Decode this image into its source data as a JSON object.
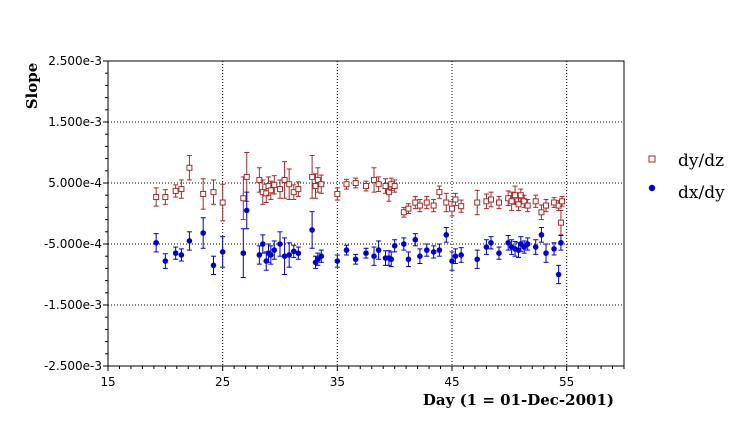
{
  "chart_data": {
    "type": "scatter",
    "title": "",
    "xlabel": "Day (1 = 01-Dec-2001)",
    "ylabel": "Slope",
    "xlim": [
      15,
      60
    ],
    "ylim": [
      -0.0025,
      0.0025
    ],
    "x_ticks": [
      15,
      25,
      35,
      45,
      55
    ],
    "x_tick_labels": [
      "15",
      "25",
      "35",
      "45",
      "55"
    ],
    "y_ticks": [
      0.0025,
      0.0015,
      0.0005,
      -0.0005,
      -0.0015,
      -0.0025
    ],
    "y_tick_labels": [
      "2.500e-3",
      "1.500e-3",
      "5.000e-4",
      "-5.000e-4",
      "-1.500e-3",
      "-2.500e-3"
    ],
    "grid": true,
    "grid_style": "dotted",
    "legend_position": "right",
    "error_bars": true,
    "series": [
      {
        "name": "dy/dz",
        "marker": "open-square",
        "color": "#a52a2a",
        "points": [
          [
            19.2,
            0.00027,
            0.00015
          ],
          [
            20.0,
            0.00027,
            0.00012
          ],
          [
            20.9,
            0.00037,
            0.0001
          ],
          [
            21.4,
            0.0004,
            0.00015
          ],
          [
            22.1,
            0.00075,
            0.0002
          ],
          [
            23.3,
            0.00032,
            0.00025
          ],
          [
            24.2,
            0.00035,
            0.0002
          ],
          [
            25.0,
            0.00018,
            0.0003
          ],
          [
            26.8,
            0.00025,
            0.00035
          ],
          [
            27.1,
            0.0006,
            0.0004
          ],
          [
            28.2,
            0.00055,
            0.0002
          ],
          [
            28.5,
            0.00035,
            0.0002
          ],
          [
            28.8,
            0.00033,
            0.00015
          ],
          [
            29.0,
            0.00045,
            0.00015
          ],
          [
            29.2,
            0.00038,
            0.00015
          ],
          [
            29.5,
            0.00047,
            0.00015
          ],
          [
            30.0,
            0.0004,
            0.00015
          ],
          [
            30.4,
            0.00055,
            0.0003
          ],
          [
            30.8,
            0.00048,
            0.00025
          ],
          [
            31.2,
            0.00035,
            0.00012
          ],
          [
            31.6,
            0.0004,
            0.00012
          ],
          [
            32.8,
            0.0006,
            0.00035
          ],
          [
            33.1,
            0.00045,
            0.0002
          ],
          [
            33.3,
            0.00055,
            0.0002
          ],
          [
            33.6,
            0.00048,
            0.00015
          ],
          [
            35.0,
            0.00032,
            0.0001
          ],
          [
            35.8,
            0.00048,
            8e-05
          ],
          [
            36.6,
            0.0005,
            8e-05
          ],
          [
            37.5,
            0.00045,
            8e-05
          ],
          [
            38.2,
            0.00055,
            0.0002
          ],
          [
            38.6,
            0.00048,
            0.00012
          ],
          [
            39.2,
            0.00045,
            0.00012
          ],
          [
            39.5,
            0.00035,
            0.00015
          ],
          [
            39.7,
            0.00048,
            0.0001
          ],
          [
            40.0,
            0.00045,
            0.0001
          ],
          [
            40.8,
            2e-05,
            8e-05
          ],
          [
            41.2,
            8e-05,
            8e-05
          ],
          [
            41.8,
            0.00018,
            0.0001
          ],
          [
            42.2,
            0.00013,
            0.0001
          ],
          [
            42.8,
            0.00018,
            0.0001
          ],
          [
            43.4,
            0.00013,
            0.0001
          ],
          [
            43.9,
            0.00035,
            0.0001
          ],
          [
            44.5,
            0.00018,
            0.00015
          ],
          [
            45.0,
            8e-05,
            0.00012
          ],
          [
            45.3,
            0.00023,
            0.0001
          ],
          [
            45.8,
            0.00012,
            0.0001
          ],
          [
            47.2,
            0.00018,
            0.0002
          ],
          [
            48.0,
            0.0002,
            0.00012
          ],
          [
            48.4,
            0.00023,
            0.00012
          ],
          [
            49.1,
            0.00018,
            0.0001
          ],
          [
            49.9,
            0.00025,
            0.00012
          ],
          [
            50.2,
            0.0002,
            0.00015
          ],
          [
            50.5,
            0.0003,
            0.00015
          ],
          [
            50.8,
            0.00015,
            0.0001
          ],
          [
            51.0,
            0.0003,
            0.0001
          ],
          [
            51.3,
            0.0002,
            0.0001
          ],
          [
            51.6,
            0.00013,
            0.0001
          ],
          [
            52.3,
            0.0002,
            0.0001
          ],
          [
            52.8,
            2e-05,
            0.00012
          ],
          [
            53.2,
            0.00013,
            0.0001
          ],
          [
            53.9,
            0.00018,
            8e-05
          ],
          [
            54.3,
            0.00013,
            8e-05
          ],
          [
            54.5,
            -0.00015,
            0.0002
          ],
          [
            54.6,
            0.0002,
            8e-05
          ]
        ]
      },
      {
        "name": "dx/dy",
        "marker": "filled-circle",
        "color": "#0000c8",
        "points": [
          [
            19.2,
            -0.00048,
            0.00015
          ],
          [
            20.0,
            -0.00078,
            0.00012
          ],
          [
            20.9,
            -0.00065,
            0.0001
          ],
          [
            21.4,
            -0.00068,
            0.0001
          ],
          [
            22.1,
            -0.00045,
            0.00015
          ],
          [
            23.3,
            -0.00032,
            0.00025
          ],
          [
            24.2,
            -0.00085,
            0.00015
          ],
          [
            25.0,
            -0.00063,
            0.00025
          ],
          [
            26.8,
            -0.00065,
            0.0004
          ],
          [
            27.1,
            5e-05,
            0.0003
          ],
          [
            28.2,
            -0.00068,
            0.00015
          ],
          [
            28.5,
            -0.0005,
            0.00015
          ],
          [
            28.8,
            -0.00078,
            0.00015
          ],
          [
            29.0,
            -0.00065,
            0.00015
          ],
          [
            29.2,
            -0.00068,
            0.00015
          ],
          [
            29.5,
            -0.0006,
            0.00015
          ],
          [
            30.0,
            -0.0005,
            0.0002
          ],
          [
            30.4,
            -0.0007,
            0.0003
          ],
          [
            30.8,
            -0.00068,
            0.0002
          ],
          [
            31.2,
            -0.00062,
            0.0001
          ],
          [
            31.6,
            -0.00065,
            0.0001
          ],
          [
            32.8,
            -0.00027,
            0.0003
          ],
          [
            33.1,
            -0.0008,
            0.0001
          ],
          [
            33.3,
            -0.00075,
            0.0001
          ],
          [
            33.6,
            -0.0007,
            0.0001
          ],
          [
            35.0,
            -0.00078,
            0.0001
          ],
          [
            35.8,
            -0.0006,
            8e-05
          ],
          [
            36.6,
            -0.00075,
            8e-05
          ],
          [
            37.5,
            -0.00065,
            8e-05
          ],
          [
            38.2,
            -0.0007,
            0.00015
          ],
          [
            38.6,
            -0.0006,
            0.00015
          ],
          [
            39.2,
            -0.00073,
            0.00012
          ],
          [
            39.5,
            -0.00073,
            0.00012
          ],
          [
            39.7,
            -0.00075,
            0.00012
          ],
          [
            40.0,
            -0.00053,
            0.0001
          ],
          [
            40.8,
            -0.0005,
            0.0001
          ],
          [
            41.2,
            -0.00075,
            0.00012
          ],
          [
            41.8,
            -0.00043,
            0.0001
          ],
          [
            42.2,
            -0.0007,
            0.00012
          ],
          [
            42.8,
            -0.0006,
            0.0001
          ],
          [
            43.4,
            -0.00063,
            0.0001
          ],
          [
            43.9,
            -0.0006,
            0.0001
          ],
          [
            44.5,
            -0.00035,
            0.00012
          ],
          [
            45.0,
            -0.00078,
            0.00015
          ],
          [
            45.3,
            -0.0007,
            0.00012
          ],
          [
            45.8,
            -0.00068,
            0.00012
          ],
          [
            47.2,
            -0.00075,
            0.00015
          ],
          [
            48.0,
            -0.00055,
            0.00012
          ],
          [
            48.4,
            -0.00048,
            0.0001
          ],
          [
            49.1,
            -0.00065,
            0.0001
          ],
          [
            49.9,
            -0.00048,
            0.00012
          ],
          [
            50.2,
            -0.00055,
            0.00012
          ],
          [
            50.5,
            -0.00058,
            0.00012
          ],
          [
            50.8,
            -0.0006,
            0.00012
          ],
          [
            51.0,
            -0.0005,
            0.00012
          ],
          [
            51.3,
            -0.00055,
            0.0001
          ],
          [
            51.6,
            -0.0005,
            0.0001
          ],
          [
            52.3,
            -0.00055,
            0.00012
          ],
          [
            52.8,
            -0.00035,
            0.00012
          ],
          [
            53.2,
            -0.00065,
            0.00015
          ],
          [
            53.9,
            -0.00058,
            0.0001
          ],
          [
            54.3,
            -0.001,
            0.00015
          ],
          [
            54.5,
            -0.00048,
            0.00012
          ]
        ]
      }
    ]
  }
}
